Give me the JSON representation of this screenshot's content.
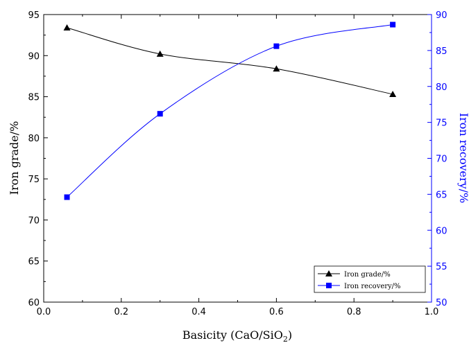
{
  "chart_data": {
    "type": "line",
    "xlabel": "Basicity (CaO/SiO",
    "xlabel_sub": "2",
    "xlabel_close": ")",
    "ylabel_left": "Iron grade/%",
    "ylabel_right": "Iron recovery/%",
    "xlim": [
      0.0,
      1.0
    ],
    "ylim_left": [
      60,
      95
    ],
    "ylim_right": [
      50,
      90
    ],
    "x_ticks": [
      0.0,
      0.2,
      0.4,
      0.6,
      0.8,
      1.0
    ],
    "x_tick_labels": [
      "0.0",
      "0.2",
      "0.4",
      "0.6",
      "0.8",
      "1.0"
    ],
    "yleft_ticks": [
      60,
      65,
      70,
      75,
      80,
      85,
      90,
      95
    ],
    "yleft_tick_labels": [
      "60",
      "65",
      "70",
      "75",
      "80",
      "85",
      "90",
      "95"
    ],
    "yright_ticks": [
      50,
      55,
      60,
      65,
      70,
      75,
      80,
      85,
      90
    ],
    "yright_tick_labels": [
      "50",
      "55",
      "60",
      "65",
      "70",
      "75",
      "80",
      "85",
      "90"
    ],
    "grid": false,
    "legend_position": "bottom-right",
    "series": [
      {
        "name": "Iron grade/%",
        "axis": "left",
        "marker": "triangle",
        "color": "#000000",
        "x": [
          0.06,
          0.3,
          0.6,
          0.9
        ],
        "y": [
          93.4,
          90.2,
          88.4,
          85.3
        ]
      },
      {
        "name": "Iron recovery/%",
        "axis": "right",
        "marker": "square",
        "color": "#0000ff",
        "x": [
          0.06,
          0.3,
          0.6,
          0.9
        ],
        "y": [
          64.6,
          76.2,
          85.6,
          88.6
        ]
      }
    ]
  }
}
